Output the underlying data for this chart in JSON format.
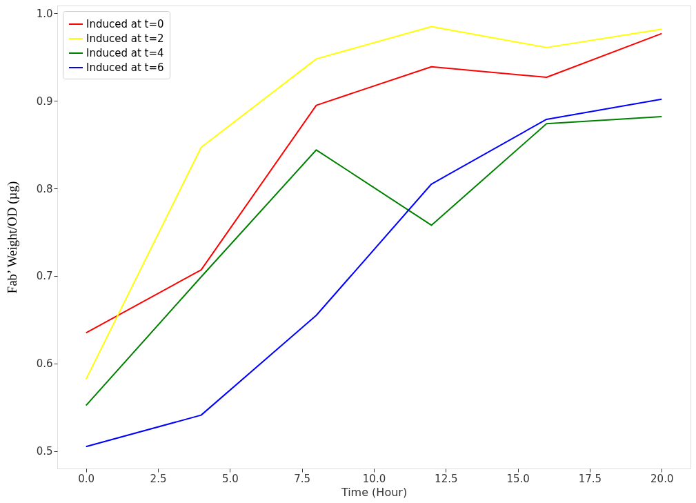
{
  "chart_data": {
    "type": "line",
    "xlabel": "Time (Hour)",
    "ylabel": "Fab’ Weight/OD (µg)",
    "x": [
      0,
      4,
      8,
      12,
      16,
      20
    ],
    "series": [
      {
        "name": "Induced at t=0",
        "color": "#ff0000",
        "values": [
          0.635,
          0.707,
          0.895,
          0.939,
          0.927,
          0.977
        ]
      },
      {
        "name": "Induced at t=2",
        "color": "#ffff00",
        "values": [
          0.582,
          0.847,
          0.948,
          0.985,
          0.961,
          0.982
        ]
      },
      {
        "name": "Induced at t=4",
        "color": "#008000",
        "values": [
          0.552,
          0.699,
          0.844,
          0.758,
          0.874,
          0.882
        ]
      },
      {
        "name": "Induced at t=6",
        "color": "#0000ff",
        "values": [
          0.505,
          0.541,
          0.655,
          0.805,
          0.879,
          0.902
        ]
      }
    ],
    "xlim": [
      -1,
      21
    ],
    "ylim": [
      0.48,
      1.009
    ],
    "xticks": [
      {
        "value": 0,
        "label": "0.0"
      },
      {
        "value": 2.5,
        "label": "2.5"
      },
      {
        "value": 5,
        "label": "5.0"
      },
      {
        "value": 7.5,
        "label": "7.5"
      },
      {
        "value": 10,
        "label": "10.0"
      },
      {
        "value": 12.5,
        "label": "12.5"
      },
      {
        "value": 15,
        "label": "15.0"
      },
      {
        "value": 17.5,
        "label": "17.5"
      },
      {
        "value": 20,
        "label": "20.0"
      }
    ],
    "yticks": [
      0.5,
      0.6,
      0.7,
      0.8,
      0.9,
      {
        "value": 1.0,
        "label": "1.0"
      }
    ],
    "legend": "top left",
    "grid": false,
    "marker": "none",
    "line_style": "solid"
  }
}
